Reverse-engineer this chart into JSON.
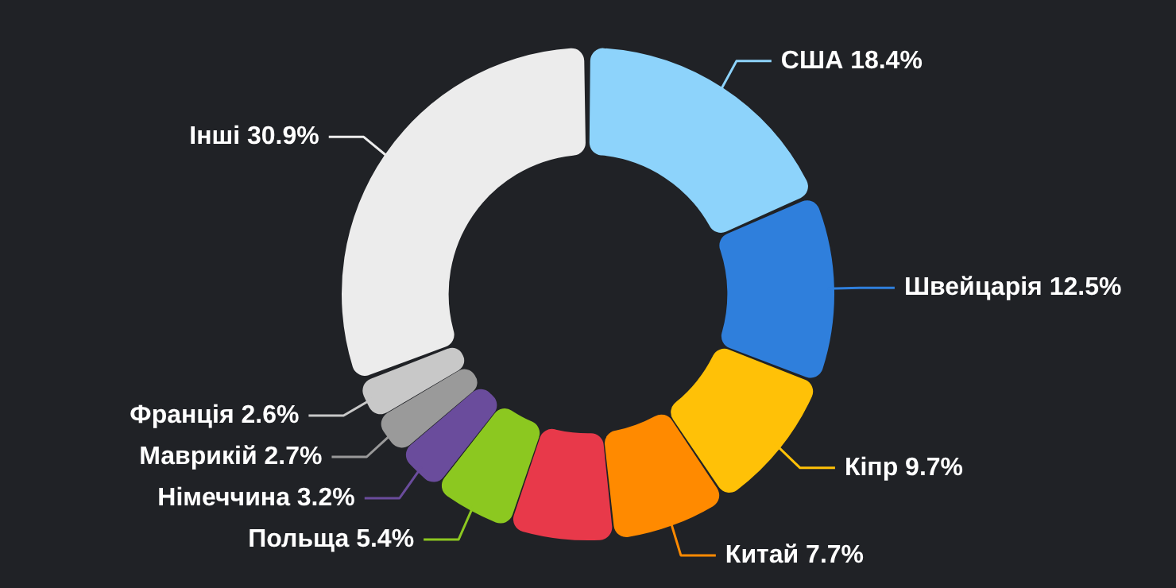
{
  "chart_data": {
    "type": "donut",
    "categories": [
      "США",
      "Швейцарія",
      "Кіпр",
      "Китай",
      null,
      "Польща",
      "Німеччина",
      "Маврикій",
      "Франція",
      "Інші"
    ],
    "values": [
      18.4,
      12.5,
      9.7,
      7.7,
      6.9,
      5.4,
      3.2,
      2.7,
      2.6,
      30.9
    ],
    "value_labels": [
      "18.4%",
      "12.5%",
      "9.7%",
      "7.7%",
      null,
      "5.4%",
      "3.2%",
      "2.7%",
      "2.6%",
      "30.9%"
    ],
    "colors": [
      "#8dd3fb",
      "#2f7fdc",
      "#ffc107",
      "#ff8a00",
      "#e8394a",
      "#8cc820",
      "#6a4c9c",
      "#9a9a9a",
      "#c8c8c8",
      "#ececec"
    ],
    "legend": false
  }
}
